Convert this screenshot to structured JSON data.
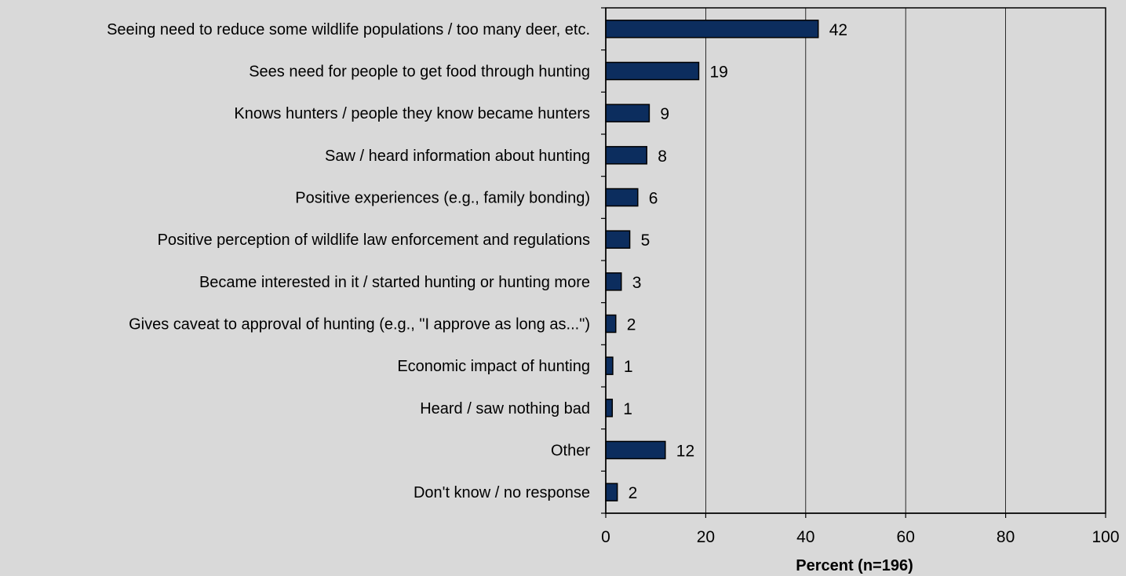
{
  "chart_data": {
    "type": "bar",
    "orientation": "horizontal",
    "categories": [
      "Seeing need to reduce some wildlife populations / too many deer, etc.",
      "Sees need for people to get food through hunting",
      "Knows hunters / people they know became hunters",
      "Saw / heard information about hunting ",
      "Positive experiences (e.g., family bonding)",
      "Positive perception of wildlife law enforcement and regulations",
      "Became interested in it / started hunting or hunting more",
      "Gives caveat to approval of hunting (e.g., \"I approve as long as...\")",
      "Economic impact of hunting",
      "Heard / saw nothing bad",
      "Other",
      "Don't know / no response"
    ],
    "values": [
      42.5,
      18.6,
      8.7,
      8.2,
      6.4,
      4.8,
      3.1,
      2.0,
      1.4,
      1.3,
      11.9,
      2.3
    ],
    "value_labels": [
      "42",
      "19",
      "9",
      "8",
      "6",
      "5",
      "3",
      "2",
      "1",
      "1",
      "12",
      "2"
    ],
    "xlabel": "Percent (n=196)",
    "ylabel": "",
    "xlim": [
      0,
      100
    ],
    "xticks": [
      0,
      20,
      40,
      60,
      80,
      100
    ],
    "grid": "vertical",
    "legend": "none",
    "bar_color": "#0c2d5e",
    "background_color": "#d9d9d9"
  }
}
